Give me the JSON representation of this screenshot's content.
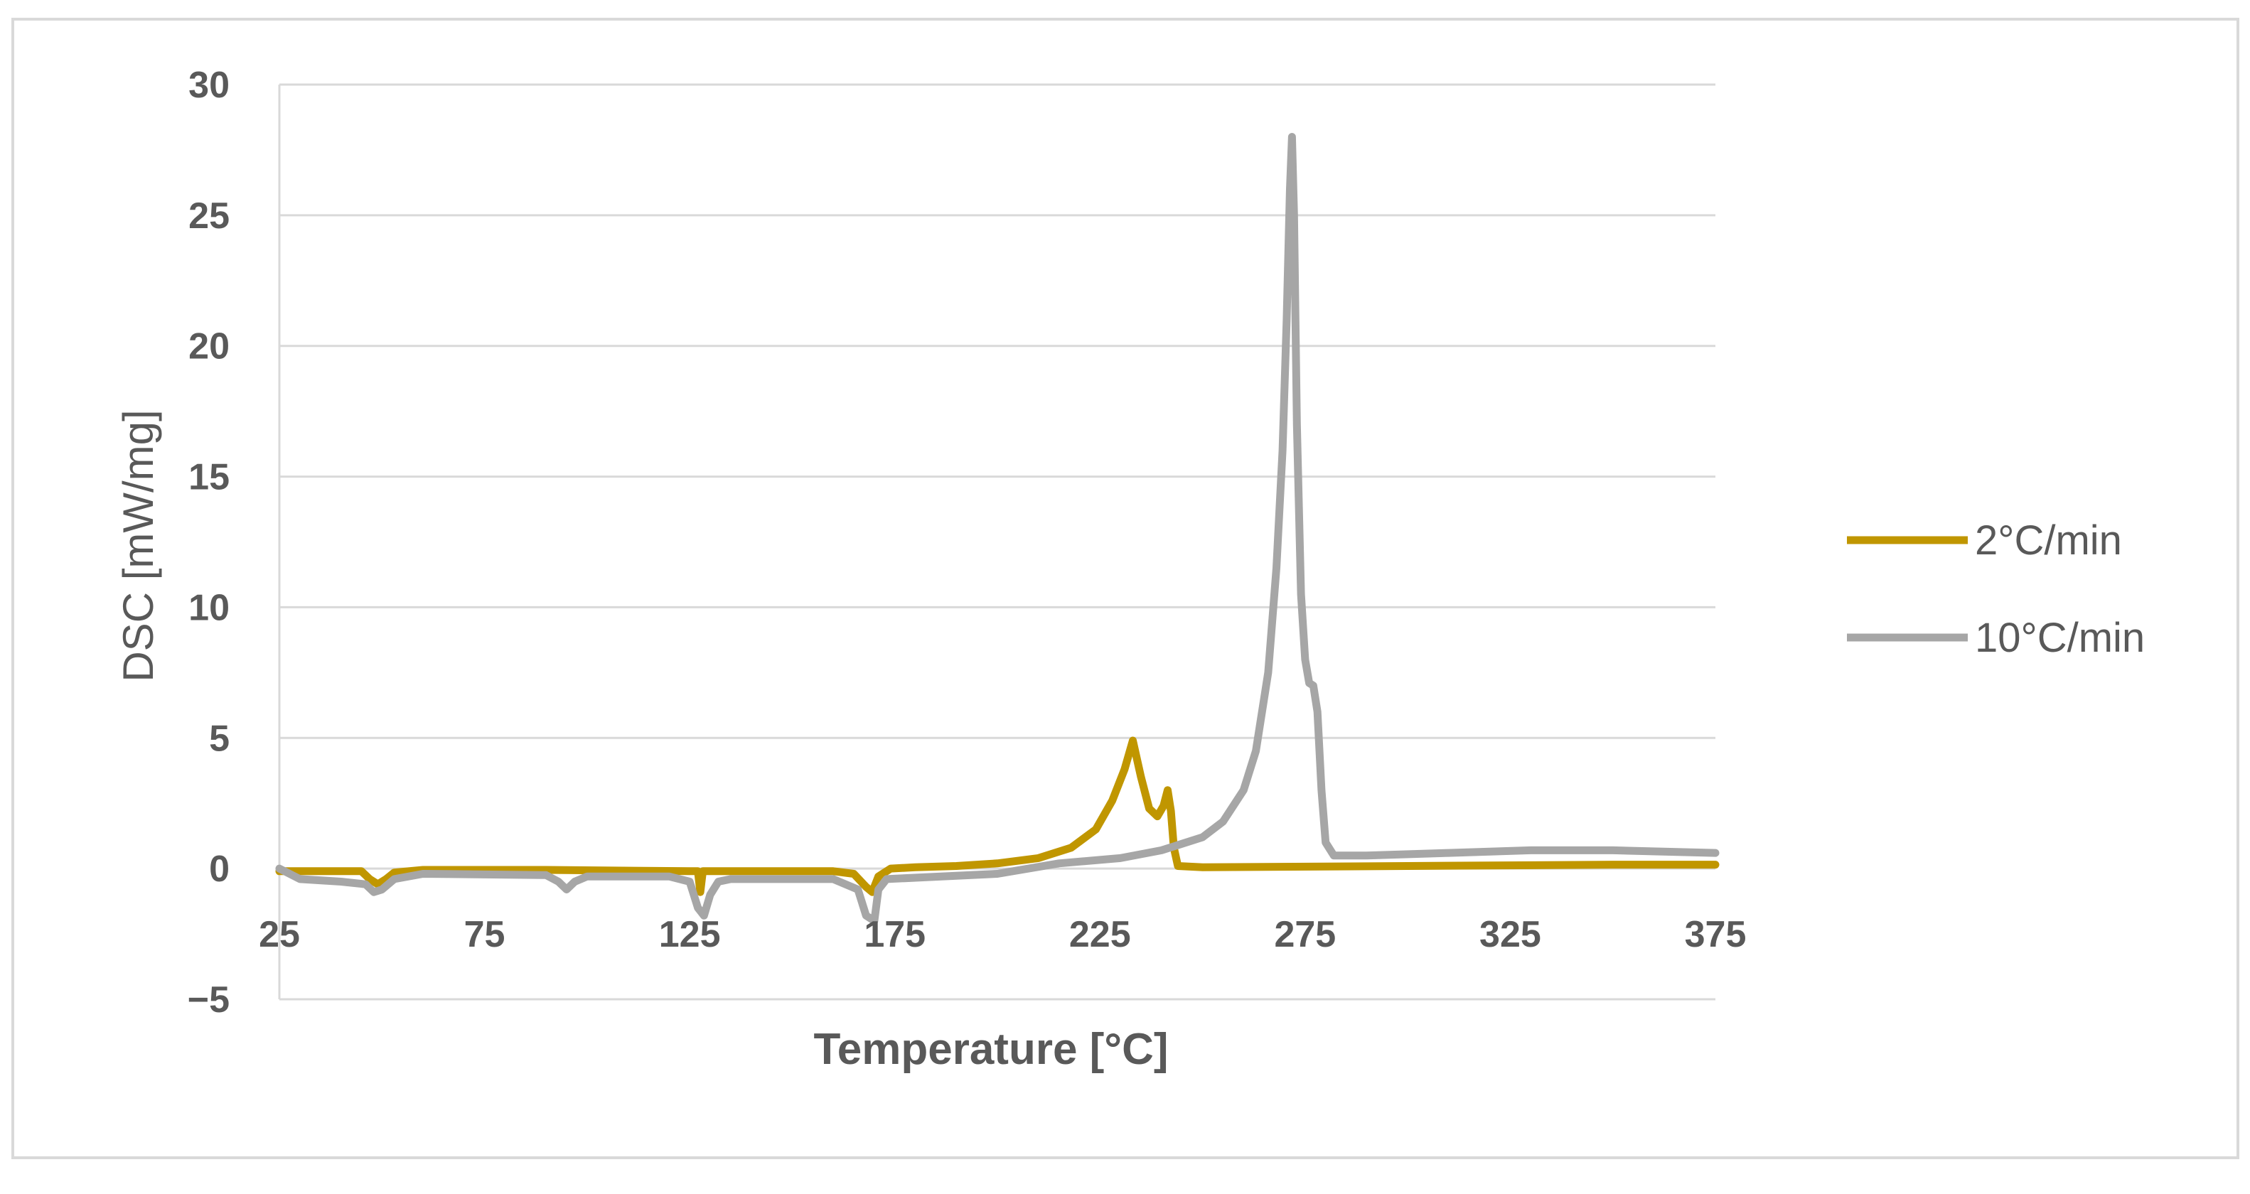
{
  "chart_data": {
    "type": "line",
    "xlabel": "Temperature [°C]",
    "ylabel": "DSC [mW/mg]",
    "xlim": [
      25,
      375
    ],
    "ylim": [
      -5,
      30
    ],
    "x_ticks": [
      "25",
      "75",
      "125",
      "175",
      "225",
      "275",
      "325",
      "375"
    ],
    "y_ticks": [
      "−5",
      "0",
      "5",
      "10",
      "15",
      "20",
      "25",
      "30"
    ],
    "grid": "horizontal",
    "legend_position": "right",
    "series": [
      {
        "name": "2°C/min",
        "color": "#c09600",
        "points": [
          [
            25,
            -0.1
          ],
          [
            45,
            -0.1
          ],
          [
            47,
            -0.4
          ],
          [
            49,
            -0.6
          ],
          [
            51,
            -0.4
          ],
          [
            53,
            -0.15
          ],
          [
            60,
            -0.05
          ],
          [
            90,
            -0.05
          ],
          [
            125,
            -0.1
          ],
          [
            127,
            -0.1
          ],
          [
            127.6,
            -0.9
          ],
          [
            128.2,
            -0.1
          ],
          [
            130,
            -0.1
          ],
          [
            160,
            -0.1
          ],
          [
            165,
            -0.2
          ],
          [
            168,
            -0.7
          ],
          [
            169.5,
            -0.9
          ],
          [
            171,
            -0.3
          ],
          [
            174,
            0.0
          ],
          [
            180,
            0.05
          ],
          [
            190,
            0.1
          ],
          [
            200,
            0.2
          ],
          [
            210,
            0.4
          ],
          [
            218,
            0.8
          ],
          [
            224,
            1.5
          ],
          [
            228,
            2.6
          ],
          [
            231,
            3.8
          ],
          [
            233,
            4.9
          ],
          [
            235,
            3.5
          ],
          [
            237,
            2.3
          ],
          [
            239,
            2.0
          ],
          [
            240.5,
            2.4
          ],
          [
            241.5,
            3.0
          ],
          [
            242.3,
            2.2
          ],
          [
            243,
            0.8
          ],
          [
            244,
            0.1
          ],
          [
            250,
            0.05
          ],
          [
            300,
            0.1
          ],
          [
            350,
            0.15
          ],
          [
            375,
            0.15
          ]
        ]
      },
      {
        "name": "10°C/min",
        "color": "#a6a6a6",
        "points": [
          [
            25,
            0.0
          ],
          [
            30,
            -0.4
          ],
          [
            40,
            -0.5
          ],
          [
            46,
            -0.6
          ],
          [
            48,
            -0.9
          ],
          [
            50,
            -0.8
          ],
          [
            53,
            -0.4
          ],
          [
            60,
            -0.2
          ],
          [
            90,
            -0.25
          ],
          [
            93,
            -0.5
          ],
          [
            95,
            -0.8
          ],
          [
            97,
            -0.5
          ],
          [
            100,
            -0.3
          ],
          [
            120,
            -0.3
          ],
          [
            125,
            -0.5
          ],
          [
            127,
            -1.5
          ],
          [
            128.5,
            -1.8
          ],
          [
            130,
            -1.0
          ],
          [
            132,
            -0.5
          ],
          [
            135,
            -0.4
          ],
          [
            160,
            -0.4
          ],
          [
            166,
            -0.8
          ],
          [
            168,
            -1.8
          ],
          [
            170,
            -2.0
          ],
          [
            171,
            -0.8
          ],
          [
            173,
            -0.4
          ],
          [
            200,
            -0.2
          ],
          [
            215,
            0.2
          ],
          [
            230,
            0.4
          ],
          [
            240,
            0.7
          ],
          [
            250,
            1.2
          ],
          [
            255,
            1.8
          ],
          [
            260,
            3.0
          ],
          [
            263,
            4.5
          ],
          [
            266,
            7.5
          ],
          [
            268,
            11.5
          ],
          [
            269.5,
            16.0
          ],
          [
            270.5,
            21.0
          ],
          [
            271.3,
            26.0
          ],
          [
            271.8,
            28.0
          ],
          [
            272.3,
            25.0
          ],
          [
            273,
            17.0
          ],
          [
            274,
            10.5
          ],
          [
            275,
            8.0
          ],
          [
            276,
            7.1
          ],
          [
            277,
            7.0
          ],
          [
            278,
            6.0
          ],
          [
            279,
            3.0
          ],
          [
            280,
            1.0
          ],
          [
            282,
            0.5
          ],
          [
            290,
            0.5
          ],
          [
            310,
            0.6
          ],
          [
            330,
            0.7
          ],
          [
            350,
            0.7
          ],
          [
            375,
            0.6
          ]
        ]
      }
    ]
  }
}
